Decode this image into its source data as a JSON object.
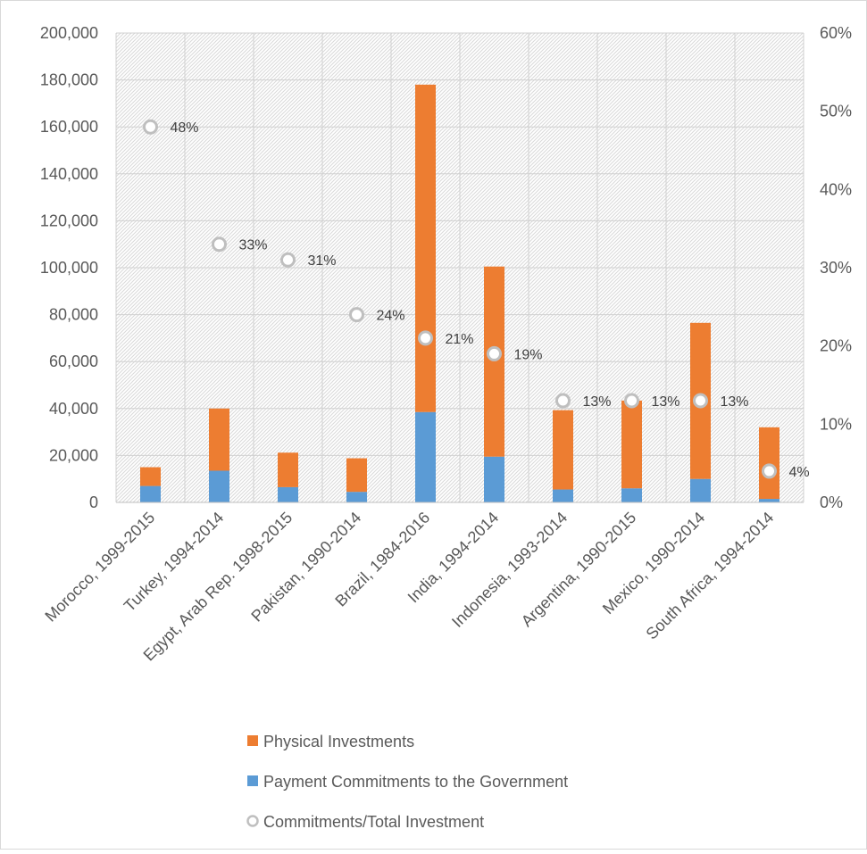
{
  "chart_data": {
    "type": "bar",
    "stacked": true,
    "categories": [
      "Morocco, 1999-2015",
      "Turkey, 1994-2014",
      "Egypt, Arab Rep. 1998-2015",
      "Pakistan, 1990-2014",
      "Brazil, 1984-2016",
      "India, 1994-2014",
      "Indonesia, 1993-2014",
      "Argentina, 1990-2015",
      "Mexico, 1990-2014",
      "South Africa, 1994-2014"
    ],
    "series": [
      {
        "name": "Payment Commitments to the Government",
        "axis": "left",
        "color": "#5b9bd5",
        "values": [
          7000,
          13500,
          6500,
          4500,
          38500,
          19500,
          5500,
          6000,
          10000,
          1500
        ]
      },
      {
        "name": "Physical Investments",
        "axis": "left",
        "color": "#ed7d31",
        "values": [
          8000,
          26500,
          14700,
          14300,
          139500,
          81000,
          33800,
          37400,
          66500,
          30500
        ]
      },
      {
        "name": "Commitments/Total Investment",
        "axis": "right",
        "type": "scatter",
        "color": "#bfbfbf",
        "values": [
          0.48,
          0.33,
          0.31,
          0.24,
          0.21,
          0.19,
          0.13,
          0.13,
          0.13,
          0.04
        ],
        "labels": [
          "48%",
          "33%",
          "31%",
          "24%",
          "21%",
          "19%",
          "13%",
          "13%",
          "13%",
          "4%"
        ]
      }
    ],
    "legend_order": [
      "Physical Investments",
      "Payment Commitments to the Government",
      "Commitments/Total Investment"
    ],
    "ylim": [
      0,
      200000
    ],
    "yticks": [
      "0",
      "20,000",
      "40,000",
      "60,000",
      "80,000",
      "100,000",
      "120,000",
      "140,000",
      "160,000",
      "180,000",
      "200,000"
    ],
    "y2lim": [
      0,
      0.6
    ],
    "y2ticks": [
      "0%",
      "10%",
      "20%",
      "30%",
      "40%",
      "50%",
      "60%"
    ],
    "grid": true,
    "legend_position": "bottom"
  }
}
